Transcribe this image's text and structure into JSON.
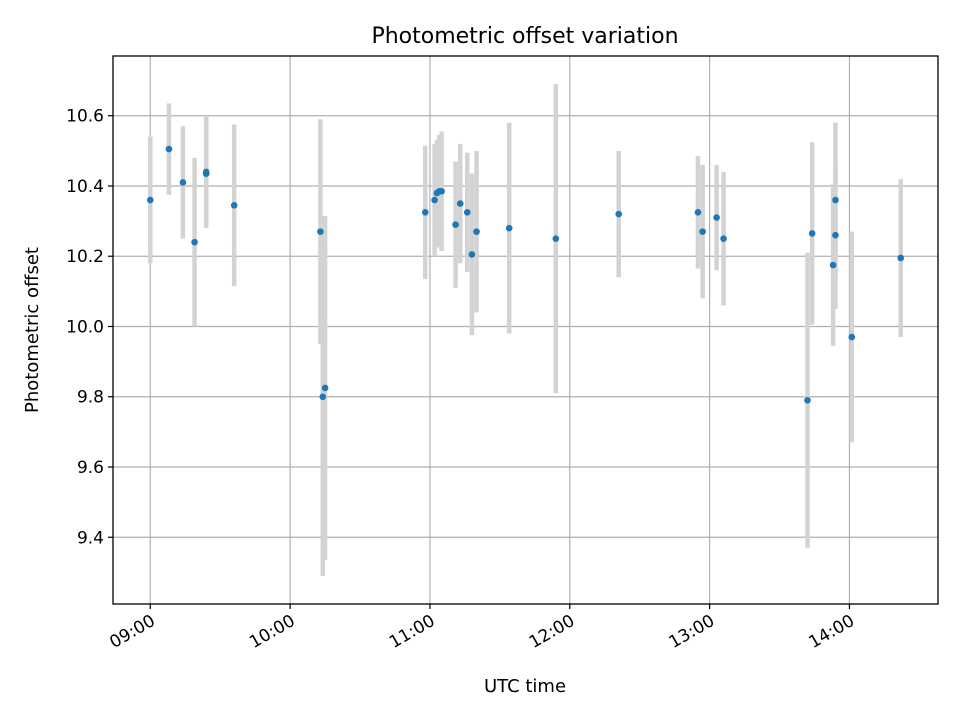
{
  "chart_data": {
    "type": "scatter",
    "title": "Photometric offset variation",
    "xlabel": "UTC time",
    "ylabel": "Photometric offset",
    "x_unit": "hours",
    "xlim": [
      "08:44",
      "14:38"
    ],
    "ylim": [
      9.21,
      10.77
    ],
    "x_ticks": [
      "09:00",
      "10:00",
      "11:00",
      "12:00",
      "13:00",
      "14:00"
    ],
    "y_ticks": [
      9.4,
      9.6,
      9.8,
      10.0,
      10.2,
      10.4,
      10.6
    ],
    "grid": true,
    "legend": "none",
    "colors": {
      "point": "#1f77b4",
      "errorbar": "#d3d3d3"
    },
    "points": [
      {
        "x": "09:00",
        "y": 10.36,
        "err": 0.18
      },
      {
        "x": "09:08",
        "y": 10.505,
        "err": 0.13
      },
      {
        "x": "09:14",
        "y": 10.41,
        "err": 0.16
      },
      {
        "x": "09:19",
        "y": 10.24,
        "err": 0.24
      },
      {
        "x": "09:24",
        "y": 10.435,
        "err": 0.15
      },
      {
        "x": "09:24",
        "y": 10.44,
        "err": 0.16
      },
      {
        "x": "09:36",
        "y": 10.345,
        "err": 0.23
      },
      {
        "x": "10:13",
        "y": 10.27,
        "err": 0.32
      },
      {
        "x": "10:14",
        "y": 9.8,
        "err": 0.51
      },
      {
        "x": "10:15",
        "y": 9.825,
        "err": 0.49
      },
      {
        "x": "10:58",
        "y": 10.325,
        "err": 0.19
      },
      {
        "x": "11:02",
        "y": 10.36,
        "err": 0.16
      },
      {
        "x": "11:03",
        "y": 10.38,
        "err": 0.15
      },
      {
        "x": "11:04",
        "y": 10.385,
        "err": 0.16
      },
      {
        "x": "11:05",
        "y": 10.385,
        "err": 0.17
      },
      {
        "x": "11:11",
        "y": 10.29,
        "err": 0.18
      },
      {
        "x": "11:13",
        "y": 10.35,
        "err": 0.17
      },
      {
        "x": "11:16",
        "y": 10.325,
        "err": 0.17
      },
      {
        "x": "11:18",
        "y": 10.205,
        "err": 0.23
      },
      {
        "x": "11:20",
        "y": 10.27,
        "err": 0.23
      },
      {
        "x": "11:34",
        "y": 10.28,
        "err": 0.3
      },
      {
        "x": "11:54",
        "y": 10.25,
        "err": 0.44
      },
      {
        "x": "12:21",
        "y": 10.32,
        "err": 0.18
      },
      {
        "x": "12:55",
        "y": 10.325,
        "err": 0.16
      },
      {
        "x": "12:57",
        "y": 10.27,
        "err": 0.19
      },
      {
        "x": "13:03",
        "y": 10.31,
        "err": 0.15
      },
      {
        "x": "13:06",
        "y": 10.25,
        "err": 0.19
      },
      {
        "x": "13:42",
        "y": 9.79,
        "err": 0.42
      },
      {
        "x": "13:44",
        "y": 10.265,
        "err": 0.26
      },
      {
        "x": "13:53",
        "y": 10.175,
        "err": 0.23
      },
      {
        "x": "13:54",
        "y": 10.26,
        "err": 0.21
      },
      {
        "x": "13:54",
        "y": 10.36,
        "err": 0.22
      },
      {
        "x": "14:01",
        "y": 9.97,
        "err": 0.3
      },
      {
        "x": "14:22",
        "y": 10.195,
        "err": 0.225
      }
    ]
  }
}
